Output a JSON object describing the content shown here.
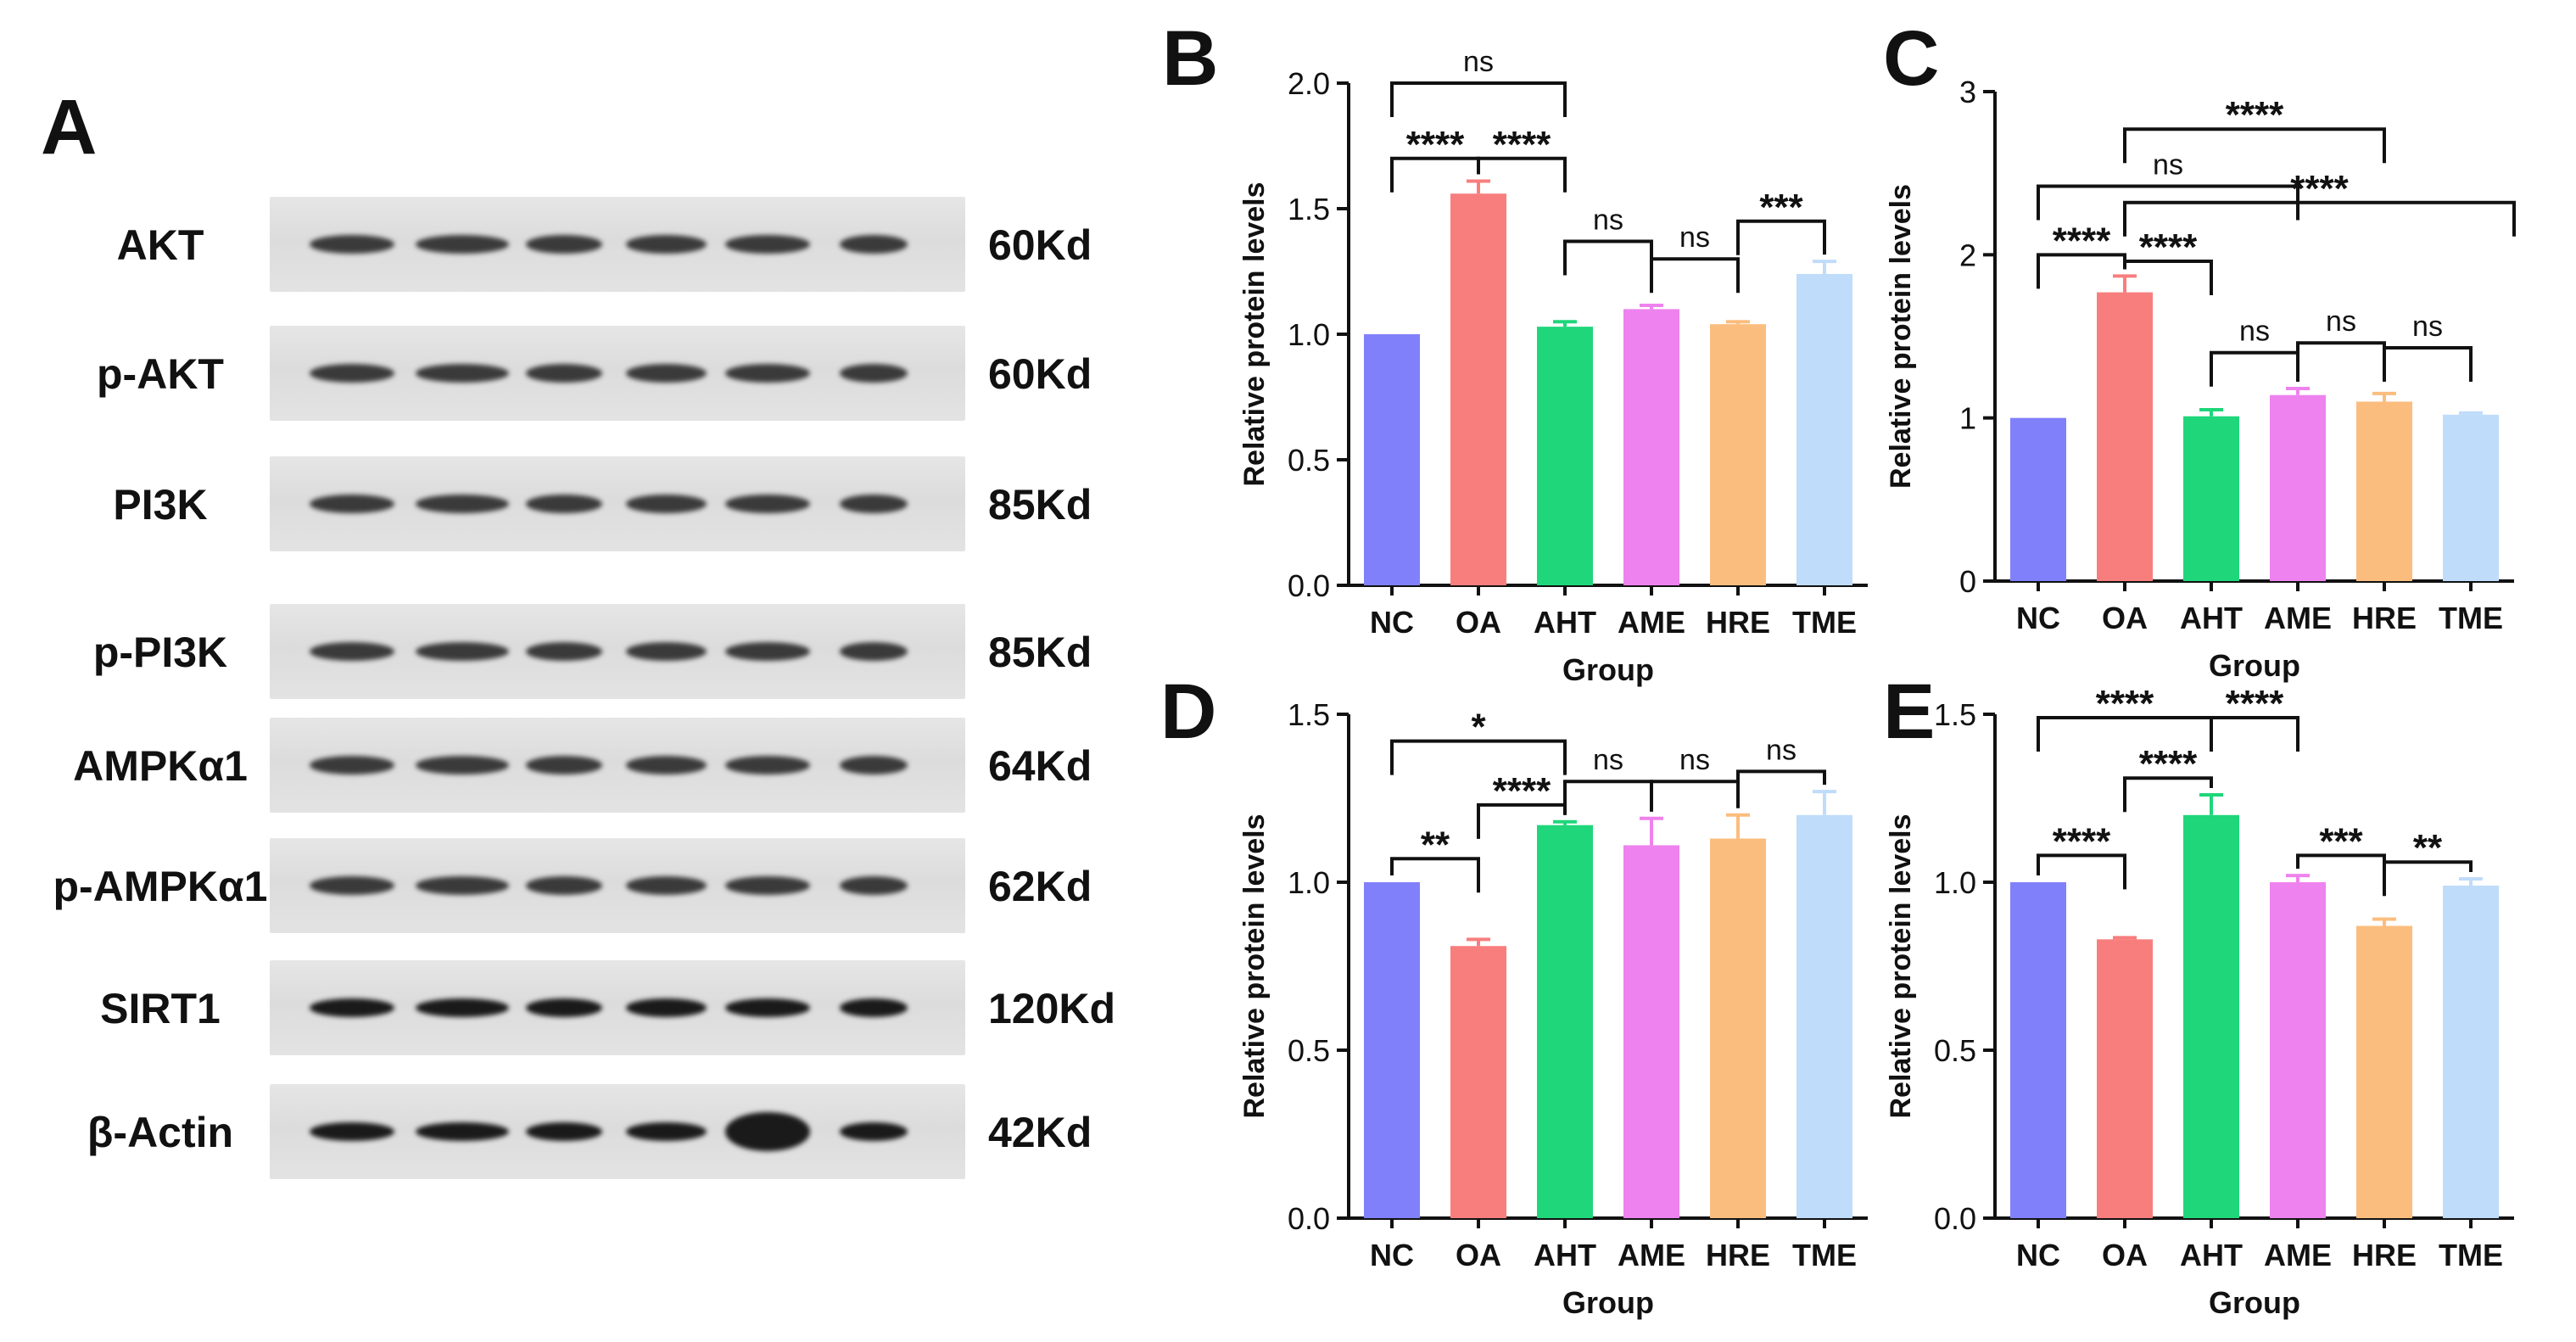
{
  "panel_a": {
    "letter": "A",
    "rows": [
      {
        "label": "AKT",
        "mw": "60Kd"
      },
      {
        "label": "p-AKT",
        "mw": "60Kd"
      },
      {
        "label": "PI3K",
        "mw": "85Kd"
      },
      {
        "label": "p-PI3K",
        "mw": "85Kd"
      },
      {
        "label": "AMPKα1",
        "mw": "64Kd"
      },
      {
        "label": "p-AMPKα1",
        "mw": "62Kd"
      },
      {
        "label": "SIRT1",
        "mw": "120Kd"
      },
      {
        "label": "β-Actin",
        "mw": "42Kd"
      }
    ]
  },
  "colors": {
    "NC": "#8080fb",
    "OA": "#f87e7e",
    "AHT": "#1fd67a",
    "AME": "#ee82ee",
    "HRE": "#fbbd7e",
    "TME": "#bfdcfa"
  },
  "chart_data": [
    {
      "panel": "B",
      "type": "bar",
      "categories": [
        "NC",
        "OA",
        "AHT",
        "AME",
        "HRE",
        "TME"
      ],
      "values": [
        1.0,
        1.56,
        1.03,
        1.1,
        1.04,
        1.24
      ],
      "errors": [
        0,
        0.05,
        0.02,
        0.015,
        0.01,
        0.05
      ],
      "ylim": [
        0,
        2.0
      ],
      "yticks": [
        0.0,
        0.5,
        1.0,
        1.5,
        2.0
      ],
      "ytick_labels": [
        "0.0",
        "0.5",
        "1.0",
        "1.5",
        "2.0"
      ],
      "xlabel": "Group",
      "ylabel": "Relative protein levels",
      "annotations": [
        {
          "from": 0,
          "to": 2,
          "y": 2.0,
          "label": "ns"
        },
        {
          "from": 0,
          "to": 1,
          "y": 1.7,
          "label": "****"
        },
        {
          "from": 1,
          "to": 2,
          "y": 1.7,
          "label": "****"
        },
        {
          "from": 2,
          "to": 3,
          "y": 1.37,
          "label": "ns"
        },
        {
          "from": 3,
          "to": 4,
          "y": 1.3,
          "label": "ns"
        },
        {
          "from": 4,
          "to": 5,
          "y": 1.45,
          "label": "***"
        }
      ]
    },
    {
      "panel": "C",
      "type": "bar",
      "categories": [
        "NC",
        "OA",
        "AHT",
        "AME",
        "HRE",
        "TME"
      ],
      "values": [
        1.0,
        1.77,
        1.01,
        1.14,
        1.1,
        1.02
      ],
      "errors": [
        0,
        0.1,
        0.04,
        0.04,
        0.05,
        0.01
      ],
      "ylim": [
        0,
        3
      ],
      "yticks": [
        0,
        1,
        2,
        3
      ],
      "ytick_labels": [
        "0",
        "1",
        "2",
        "3"
      ],
      "xlabel": "Group",
      "ylabel": "Relative protein levels",
      "annotations": [
        {
          "from": 1,
          "to": 4,
          "y": 2.77,
          "label": "****"
        },
        {
          "from": 0,
          "to": 3,
          "y": 2.42,
          "label": "ns"
        },
        {
          "from": 1,
          "to": 6,
          "y": 2.32,
          "label": "****"
        },
        {
          "from": 0,
          "to": 1,
          "y": 2.0,
          "label": "****"
        },
        {
          "from": 1,
          "to": 2,
          "y": 1.96,
          "label": "****"
        },
        {
          "from": 2,
          "to": 3,
          "y": 1.4,
          "label": "ns"
        },
        {
          "from": 3,
          "to": 4,
          "y": 1.46,
          "label": "ns"
        },
        {
          "from": 4,
          "to": 5,
          "y": 1.43,
          "label": "ns"
        }
      ]
    },
    {
      "panel": "D",
      "type": "bar",
      "categories": [
        "NC",
        "OA",
        "AHT",
        "AME",
        "HRE",
        "TME"
      ],
      "values": [
        1.0,
        0.81,
        1.17,
        1.11,
        1.13,
        1.2
      ],
      "errors": [
        0,
        0.02,
        0.01,
        0.08,
        0.07,
        0.07
      ],
      "ylim": [
        0,
        1.5
      ],
      "yticks": [
        0.0,
        0.5,
        1.0,
        1.5
      ],
      "ytick_labels": [
        "0.0",
        "0.5",
        "1.0",
        "1.5"
      ],
      "xlabel": "Group",
      "ylabel": "Relative protein levels",
      "annotations": [
        {
          "from": 0,
          "to": 2,
          "y": 1.42,
          "label": "*"
        },
        {
          "from": 0,
          "to": 1,
          "y": 1.07,
          "label": "**"
        },
        {
          "from": 1,
          "to": 2,
          "y": 1.23,
          "label": "****"
        },
        {
          "from": 2,
          "to": 3,
          "y": 1.3,
          "label": "ns"
        },
        {
          "from": 3,
          "to": 4,
          "y": 1.3,
          "label": "ns"
        },
        {
          "from": 4,
          "to": 5,
          "y": 1.33,
          "label": "ns"
        }
      ]
    },
    {
      "panel": "E",
      "type": "bar",
      "categories": [
        "NC",
        "OA",
        "AHT",
        "AME",
        "HRE",
        "TME"
      ],
      "values": [
        1.0,
        0.83,
        1.2,
        1.0,
        0.87,
        0.99
      ],
      "errors": [
        0,
        0.005,
        0.06,
        0.02,
        0.02,
        0.02
      ],
      "ylim": [
        0,
        1.5
      ],
      "yticks": [
        0.0,
        0.5,
        1.0,
        1.5
      ],
      "ytick_labels": [
        "0.0",
        "0.5",
        "1.0",
        "1.5"
      ],
      "xlabel": "Group",
      "ylabel": "Relative protein levels",
      "annotations": [
        {
          "from": 0,
          "to": 2,
          "y": 1.49,
          "label": "****"
        },
        {
          "from": 2,
          "to": 3,
          "y": 1.49,
          "label": "****"
        },
        {
          "from": 0,
          "to": 1,
          "y": 1.08,
          "label": "****"
        },
        {
          "from": 1,
          "to": 2,
          "y": 1.31,
          "label": "****"
        },
        {
          "from": 3,
          "to": 4,
          "y": 1.08,
          "label": "***"
        },
        {
          "from": 4,
          "to": 5,
          "y": 1.06,
          "label": "**"
        }
      ]
    }
  ]
}
